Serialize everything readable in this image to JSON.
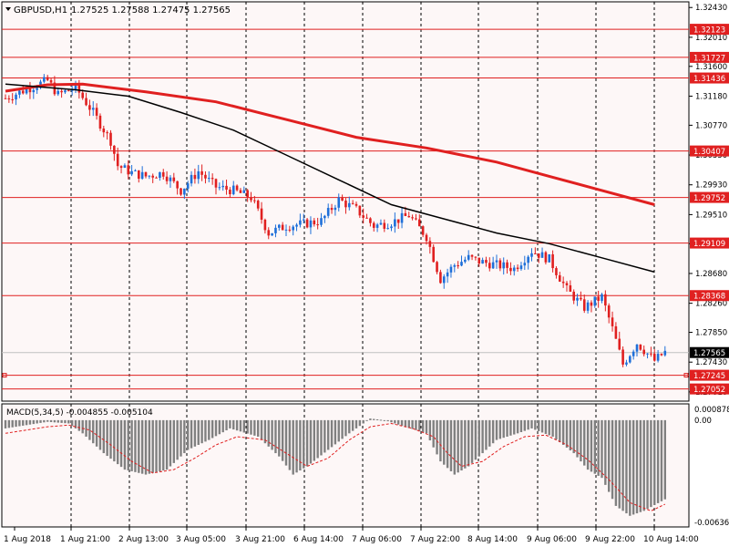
{
  "header": {
    "symbol": "GBPUSD,H1",
    "ohlc": "1.27525 1.27588 1.27475 1.27565"
  },
  "macd": {
    "label": "MACD(5,34,5) -0.004855 -0.005104",
    "scale_top": "0.000878",
    "scale_zero": "0.00",
    "scale_bottom": "-0.006365",
    "range": [
      -0.006365,
      0.000878
    ]
  },
  "colors": {
    "background": "#fdf7f7",
    "grid": "#000000",
    "bull_candle": "#1e6fd9",
    "bear_candle": "#e02020",
    "level_line": "#e02020",
    "ma_fast": "#000000",
    "ma_slow": "#e02020",
    "histogram": "#808080",
    "signal": "#e02020",
    "price_tag_fill": "#e02020",
    "current_tag_fill": "#000000"
  },
  "chart_data": {
    "type": "candlestick",
    "title": "GBPUSD,H1",
    "y_range": [
      1.2688,
      1.3251
    ],
    "price_ticks": [
      "1.32430",
      "1.32010",
      "1.31600",
      "1.31180",
      "1.30770",
      "1.30350",
      "1.29930",
      "1.29510",
      "1.29100",
      "1.28680",
      "1.28260",
      "1.27850",
      "1.27430",
      "1.27010"
    ],
    "x_labels": [
      "1 Aug 2018",
      "1 Aug 21:00",
      "2 Aug 13:00",
      "3 Aug 05:00",
      "3 Aug 21:00",
      "6 Aug 14:00",
      "7 Aug 06:00",
      "7 Aug 22:00",
      "8 Aug 14:00",
      "9 Aug 06:00",
      "9 Aug 22:00",
      "10 Aug 14:00"
    ],
    "horizontal_levels": [
      "1.32123",
      "1.31727",
      "1.31436",
      "1.30407",
      "1.29752",
      "1.29109",
      "1.28368",
      "1.27245",
      "1.27052"
    ],
    "current_price": "1.27565",
    "close_path": [
      [
        0,
        1.3115
      ],
      [
        8,
        1.3132
      ],
      [
        12,
        1.314
      ],
      [
        15,
        1.312
      ],
      [
        20,
        1.313
      ],
      [
        25,
        1.3095
      ],
      [
        30,
        1.3055
      ],
      [
        32,
        1.302
      ],
      [
        36,
        1.301
      ],
      [
        40,
        1.3005
      ],
      [
        45,
        1.301
      ],
      [
        50,
        1.2985
      ],
      [
        55,
        1.3012
      ],
      [
        60,
        1.299
      ],
      [
        65,
        1.2985
      ],
      [
        70,
        1.2975
      ],
      [
        75,
        1.2925
      ],
      [
        80,
        1.2935
      ],
      [
        85,
        1.2938
      ],
      [
        90,
        1.2942
      ],
      [
        95,
        1.2972
      ],
      [
        100,
        1.2958
      ],
      [
        105,
        1.2935
      ],
      [
        110,
        1.294
      ],
      [
        115,
        1.295
      ],
      [
        120,
        1.292
      ],
      [
        124,
        1.286
      ],
      [
        128,
        1.288
      ],
      [
        132,
        1.289
      ],
      [
        135,
        1.2885
      ],
      [
        140,
        1.288
      ],
      [
        145,
        1.2875
      ],
      [
        150,
        1.29
      ],
      [
        155,
        1.2888
      ],
      [
        160,
        1.2845
      ],
      [
        165,
        1.282
      ],
      [
        170,
        1.2835
      ],
      [
        173,
        1.279
      ],
      [
        176,
        1.274
      ],
      [
        180,
        1.277
      ],
      [
        185,
        1.2745
      ],
      [
        188,
        1.2757
      ]
    ],
    "ma_fast": [
      [
        0,
        1.3135
      ],
      [
        20,
        1.3127
      ],
      [
        35,
        1.3118
      ],
      [
        50,
        1.3095
      ],
      [
        65,
        1.307
      ],
      [
        80,
        1.3035
      ],
      [
        95,
        1.3
      ],
      [
        110,
        1.2965
      ],
      [
        125,
        1.2945
      ],
      [
        140,
        1.2925
      ],
      [
        155,
        1.291
      ],
      [
        170,
        1.289
      ],
      [
        185,
        1.287
      ]
    ],
    "ma_slow": [
      [
        0,
        1.3125
      ],
      [
        12,
        1.3134
      ],
      [
        22,
        1.3135
      ],
      [
        40,
        1.3124
      ],
      [
        60,
        1.311
      ],
      [
        80,
        1.3085
      ],
      [
        100,
        1.306
      ],
      [
        120,
        1.3045
      ],
      [
        140,
        1.3025
      ],
      [
        155,
        1.3005
      ],
      [
        170,
        1.2985
      ],
      [
        185,
        1.2965
      ]
    ],
    "macd_hist": [
      [
        0,
        -0.0005
      ],
      [
        12,
        -0.0001
      ],
      [
        18,
        -0.0002
      ],
      [
        22,
        -0.0008
      ],
      [
        28,
        -0.002
      ],
      [
        34,
        -0.003
      ],
      [
        40,
        -0.0033
      ],
      [
        46,
        -0.003
      ],
      [
        52,
        -0.0018
      ],
      [
        58,
        -0.0012
      ],
      [
        64,
        -0.0005
      ],
      [
        72,
        -0.001
      ],
      [
        78,
        -0.0022
      ],
      [
        82,
        -0.0033
      ],
      [
        86,
        -0.0028
      ],
      [
        92,
        -0.0018
      ],
      [
        98,
        -0.0008
      ],
      [
        104,
        0.0001
      ],
      [
        108,
        0.0
      ],
      [
        114,
        -0.0004
      ],
      [
        120,
        -0.0008
      ],
      [
        124,
        -0.0025
      ],
      [
        128,
        -0.0033
      ],
      [
        132,
        -0.0028
      ],
      [
        136,
        -0.002
      ],
      [
        140,
        -0.0012
      ],
      [
        146,
        -0.0008
      ],
      [
        150,
        -0.0005
      ],
      [
        156,
        -0.001
      ],
      [
        162,
        -0.002
      ],
      [
        166,
        -0.003
      ],
      [
        170,
        -0.0035
      ],
      [
        174,
        -0.0052
      ],
      [
        178,
        -0.0058
      ],
      [
        182,
        -0.0055
      ],
      [
        188,
        -0.0048
      ]
    ],
    "macd_signal": [
      [
        0,
        -0.0008
      ],
      [
        12,
        -0.0004
      ],
      [
        18,
        -0.0003
      ],
      [
        24,
        -0.0006
      ],
      [
        30,
        -0.0015
      ],
      [
        36,
        -0.0025
      ],
      [
        42,
        -0.0032
      ],
      [
        48,
        -0.003
      ],
      [
        54,
        -0.0023
      ],
      [
        60,
        -0.0015
      ],
      [
        66,
        -0.001
      ],
      [
        74,
        -0.0012
      ],
      [
        80,
        -0.002
      ],
      [
        86,
        -0.0028
      ],
      [
        92,
        -0.0023
      ],
      [
        98,
        -0.0012
      ],
      [
        104,
        -0.0004
      ],
      [
        110,
        -0.0002
      ],
      [
        116,
        -0.0005
      ],
      [
        122,
        -0.001
      ],
      [
        126,
        -0.002
      ],
      [
        130,
        -0.0028
      ],
      [
        136,
        -0.0025
      ],
      [
        142,
        -0.0016
      ],
      [
        148,
        -0.001
      ],
      [
        154,
        -0.0009
      ],
      [
        160,
        -0.0015
      ],
      [
        166,
        -0.0024
      ],
      [
        172,
        -0.0036
      ],
      [
        178,
        -0.005
      ],
      [
        184,
        -0.0055
      ],
      [
        188,
        -0.0051
      ]
    ]
  }
}
